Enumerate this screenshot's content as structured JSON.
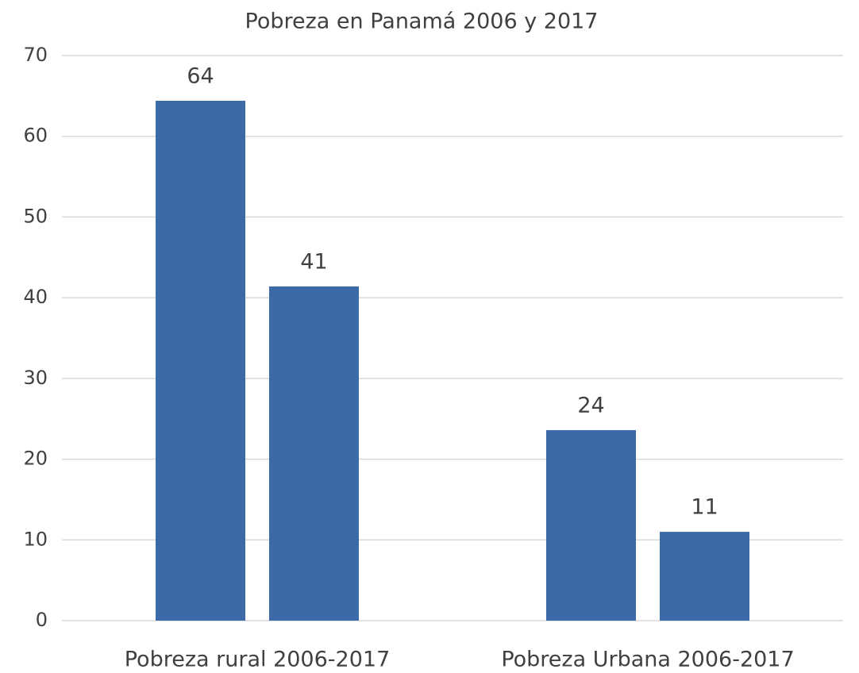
{
  "chart_data": {
    "type": "bar",
    "title": "Pobreza en Panamá 2006 y 2017",
    "categories": [
      "Pobreza rural 2006-2017",
      "Pobreza Urbana 2006-2017"
    ],
    "series": [
      {
        "color": "#3c6aa8",
        "values": [
          64.4,
          23.6
        ],
        "value_labels": [
          "64",
          "24"
        ]
      },
      {
        "color": "#3c6aa8",
        "values": [
          41.4,
          11.0
        ],
        "value_labels": [
          "41",
          "11"
        ]
      }
    ],
    "ylim": [
      0,
      70
    ],
    "yticks": [
      0,
      10,
      20,
      30,
      40,
      50,
      60,
      70
    ],
    "grid": true
  }
}
